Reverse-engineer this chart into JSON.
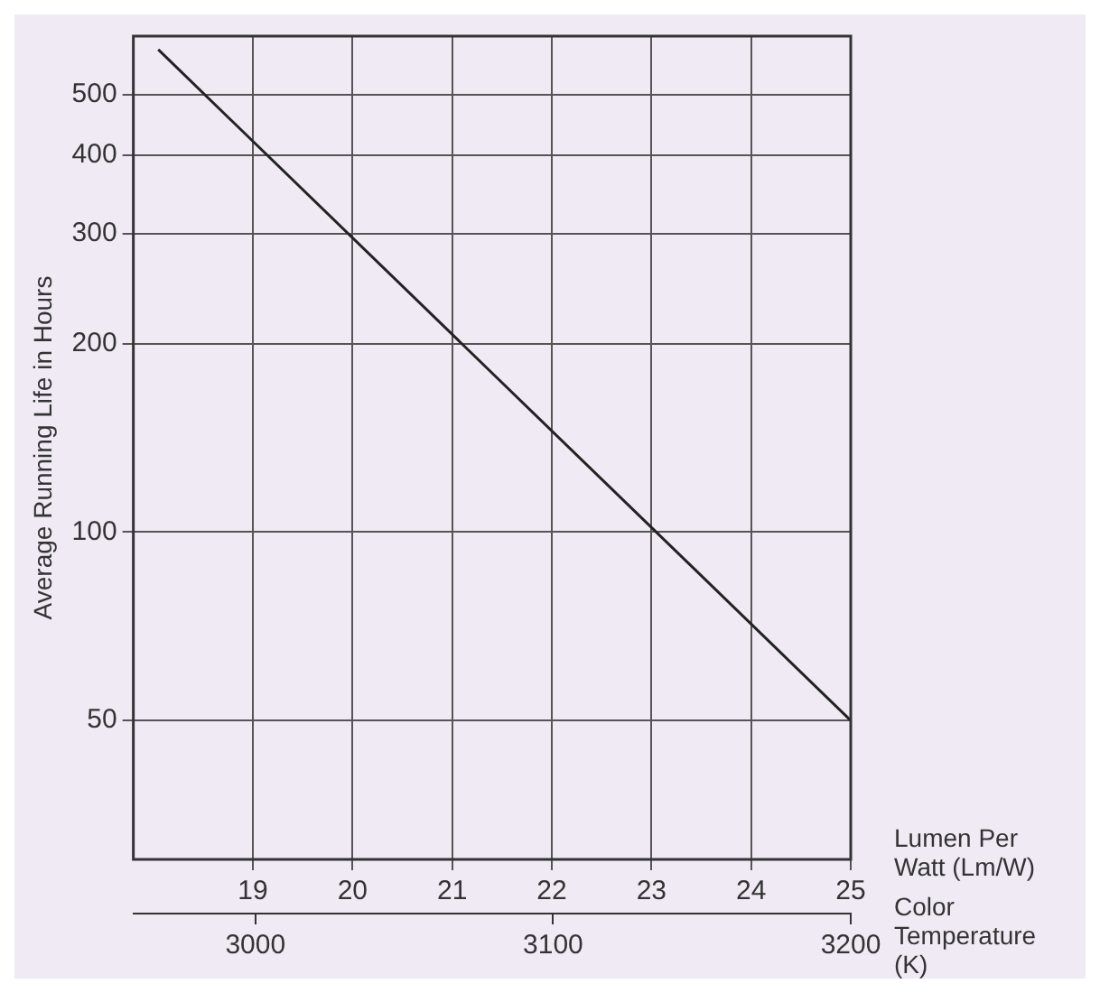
{
  "chart_data": {
    "type": "line",
    "ylabel": "Average Running Life in Hours",
    "xlabel": "Lumen Per Watt (Lm/W)",
    "x2label": "Color Temperature (K)",
    "x": [
      18.05,
      25
    ],
    "series": [
      {
        "color": "#222222",
        "values": [
          590,
          50
        ]
      }
    ],
    "xlim": [
      17.8,
      25
    ],
    "xticks": [
      19,
      20,
      21,
      22,
      23,
      24,
      25
    ],
    "x2lim": [
      2959,
      3200
    ],
    "x2ticks": [
      3000,
      3100,
      3200
    ],
    "ylim": [
      30,
      620
    ],
    "yticks": [
      50,
      100,
      200,
      300,
      400,
      500
    ],
    "log": "y",
    "grid": true,
    "legend": false
  }
}
